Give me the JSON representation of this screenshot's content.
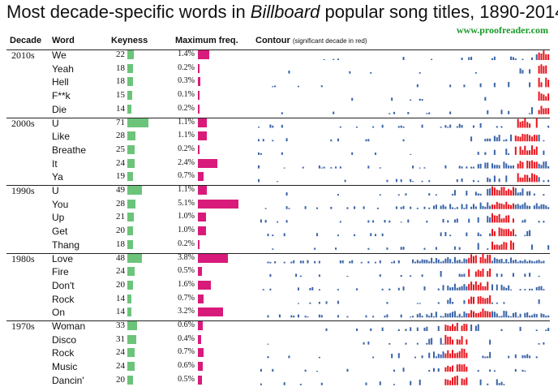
{
  "title": {
    "pre": "Most decade-specific words in ",
    "em": "Billboard",
    "post": " popular song titles, 1890-2014"
  },
  "website": "www.proofreader.com",
  "headers": {
    "decade": "Decade",
    "word": "Word",
    "keyness": "Keyness",
    "maxfreq": "Maximum freq.",
    "contour": "Contour",
    "contour_note": "(significant decade in red)"
  },
  "colors": {
    "keyness_bar": "#6cc47a",
    "maxfreq_bar": "#d81b7a",
    "contour": "#3a64a8",
    "contour_significant": "#e8141c",
    "website": "#1a9a2a"
  },
  "chart_data": {
    "type": "table",
    "x_range": [
      1890,
      2014
    ],
    "groups": [
      {
        "decade": "2010s",
        "sig_start": 2010,
        "rows": [
          {
            "word": "We",
            "keyness": 22,
            "max_freq": "1.4%",
            "max_freq_value": 1.4
          },
          {
            "word": "Yeah",
            "keyness": 18,
            "max_freq": "0.2%",
            "max_freq_value": 0.2
          },
          {
            "word": "Hell",
            "keyness": 18,
            "max_freq": "0.3%",
            "max_freq_value": 0.3
          },
          {
            "word": "F**k",
            "keyness": 15,
            "max_freq": "0.1%",
            "max_freq_value": 0.1
          },
          {
            "word": "Die",
            "keyness": 14,
            "max_freq": "0.2%",
            "max_freq_value": 0.2
          }
        ]
      },
      {
        "decade": "2000s",
        "sig_start": 2000,
        "rows": [
          {
            "word": "U",
            "keyness": 71,
            "max_freq": "1.1%",
            "max_freq_value": 1.1
          },
          {
            "word": "Like",
            "keyness": 28,
            "max_freq": "1.1%",
            "max_freq_value": 1.1
          },
          {
            "word": "Breathe",
            "keyness": 25,
            "max_freq": "0.2%",
            "max_freq_value": 0.2
          },
          {
            "word": "It",
            "keyness": 24,
            "max_freq": "2.4%",
            "max_freq_value": 2.4
          },
          {
            "word": "Ya",
            "keyness": 19,
            "max_freq": "0.7%",
            "max_freq_value": 0.7
          }
        ]
      },
      {
        "decade": "1990s",
        "sig_start": 1990,
        "rows": [
          {
            "word": "U",
            "keyness": 49,
            "max_freq": "1.1%",
            "max_freq_value": 1.1
          },
          {
            "word": "You",
            "keyness": 28,
            "max_freq": "5.1%",
            "max_freq_value": 5.1
          },
          {
            "word": "Up",
            "keyness": 21,
            "max_freq": "1.0%",
            "max_freq_value": 1.0
          },
          {
            "word": "Get",
            "keyness": 20,
            "max_freq": "1.0%",
            "max_freq_value": 1.0
          },
          {
            "word": "Thang",
            "keyness": 18,
            "max_freq": "0.2%",
            "max_freq_value": 0.2
          }
        ]
      },
      {
        "decade": "1980s",
        "sig_start": 1980,
        "rows": [
          {
            "word": "Love",
            "keyness": 48,
            "max_freq": "3.8%",
            "max_freq_value": 3.8
          },
          {
            "word": "Fire",
            "keyness": 24,
            "max_freq": "0.5%",
            "max_freq_value": 0.5
          },
          {
            "word": "Don't",
            "keyness": 20,
            "max_freq": "1.6%",
            "max_freq_value": 1.6
          },
          {
            "word": "Rock",
            "keyness": 14,
            "max_freq": "0.7%",
            "max_freq_value": 0.7
          },
          {
            "word": "On",
            "keyness": 14,
            "max_freq": "3.2%",
            "max_freq_value": 3.2
          }
        ]
      },
      {
        "decade": "1970s",
        "sig_start": 1970,
        "rows": [
          {
            "word": "Woman",
            "keyness": 33,
            "max_freq": "0.6%",
            "max_freq_value": 0.6
          },
          {
            "word": "Disco",
            "keyness": 31,
            "max_freq": "0.4%",
            "max_freq_value": 0.4
          },
          {
            "word": "Rock",
            "keyness": 24,
            "max_freq": "0.7%",
            "max_freq_value": 0.7
          },
          {
            "word": "Music",
            "keyness": 24,
            "max_freq": "0.6%",
            "max_freq_value": 0.6
          },
          {
            "word": "Dancin'",
            "keyness": 20,
            "max_freq": "0.5%",
            "max_freq_value": 0.5
          }
        ]
      }
    ]
  }
}
